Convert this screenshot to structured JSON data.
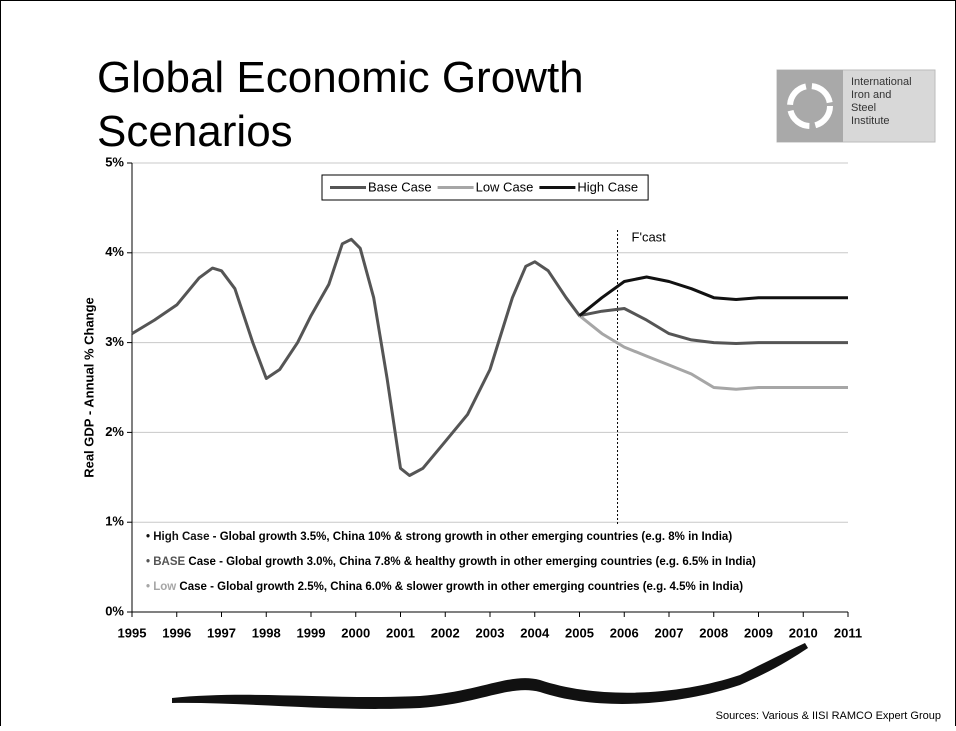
{
  "title": "Global Economic Growth Scenarios",
  "logo": {
    "lines": [
      "International",
      "Iron and",
      "Steel",
      "Institute"
    ]
  },
  "source": "Sources: Various & IISI RAMCO Expert Group",
  "chart_data": {
    "type": "line",
    "y_label": "Real GDP - Annual % Change",
    "x": [
      1995,
      1995.5,
      1996,
      1996.5,
      1996.8,
      1997,
      1997.3,
      1997.7,
      1998,
      1998.3,
      1998.7,
      1999,
      1999.4,
      1999.7,
      1999.9,
      2000.1,
      2000.4,
      2000.7,
      2001,
      2001.2,
      2001.5,
      2002,
      2002.5,
      2003,
      2003.5,
      2003.8,
      2004,
      2004.3,
      2004.7,
      2005,
      2005.5,
      2006,
      2006.5,
      2007,
      2007.5,
      2008,
      2008.5,
      2009,
      2010,
      2011
    ],
    "series": [
      {
        "name": "Base Case",
        "color": "#555555",
        "values": [
          3.1,
          3.25,
          3.42,
          3.72,
          3.83,
          3.8,
          3.6,
          3.0,
          2.6,
          2.7,
          3.0,
          3.3,
          3.65,
          4.1,
          4.15,
          4.05,
          3.5,
          2.6,
          1.6,
          1.52,
          1.6,
          1.9,
          2.2,
          2.7,
          3.5,
          3.85,
          3.9,
          3.8,
          3.5,
          3.3,
          3.35,
          3.38,
          3.25,
          3.1,
          3.03,
          3.0,
          2.99,
          3.0,
          3.0,
          3.0
        ]
      },
      {
        "name": "Low Case",
        "color": "#a6a6a6",
        "values": [
          null,
          null,
          null,
          null,
          null,
          null,
          null,
          null,
          null,
          null,
          null,
          null,
          null,
          null,
          null,
          null,
          null,
          null,
          null,
          null,
          null,
          null,
          null,
          null,
          null,
          null,
          null,
          null,
          null,
          3.3,
          3.1,
          2.95,
          2.85,
          2.75,
          2.65,
          2.5,
          2.48,
          2.5,
          2.5,
          2.5
        ]
      },
      {
        "name": "High Case",
        "color": "#111111",
        "values": [
          null,
          null,
          null,
          null,
          null,
          null,
          null,
          null,
          null,
          null,
          null,
          null,
          null,
          null,
          null,
          null,
          null,
          null,
          null,
          null,
          null,
          null,
          null,
          null,
          null,
          null,
          null,
          null,
          null,
          3.3,
          3.5,
          3.68,
          3.73,
          3.68,
          3.6,
          3.5,
          3.48,
          3.5,
          3.5,
          3.5
        ]
      }
    ],
    "xlim": [
      1995,
      2011
    ],
    "xticks": [
      1995,
      1996,
      1997,
      1998,
      1999,
      2000,
      2001,
      2002,
      2003,
      2004,
      2005,
      2006,
      2007,
      2008,
      2009,
      2010,
      2011
    ],
    "ylim": [
      0,
      5
    ],
    "yticks": [
      {
        "value": 0,
        "label": "0%"
      },
      {
        "value": 1,
        "label": "1%"
      },
      {
        "value": 2,
        "label": "2%"
      },
      {
        "value": 3,
        "label": "3%"
      },
      {
        "value": 4,
        "label": "4%"
      },
      {
        "value": 5,
        "label": "5%"
      }
    ],
    "grid": true,
    "forecast": {
      "x": 2005.85,
      "label": "F'cast"
    },
    "notes": [
      {
        "lead": "High Case",
        "lead_color": "#111111",
        "rest": " - Global growth 3.5%, China 10% & strong growth in other emerging countries (e.g. 8% in India)"
      },
      {
        "lead": "BASE",
        "lead_color": "#555555",
        "rest": " Case - Global growth 3.0%, China 7.8% & healthy growth in other emerging countries (e.g. 6.5% in India)"
      },
      {
        "lead": "Low",
        "lead_color": "#a6a6a6",
        "rest": " Case - Global growth 2.5%, China 6.0% & slower growth in other emerging countries (e.g. 4.5% in India)"
      }
    ]
  }
}
